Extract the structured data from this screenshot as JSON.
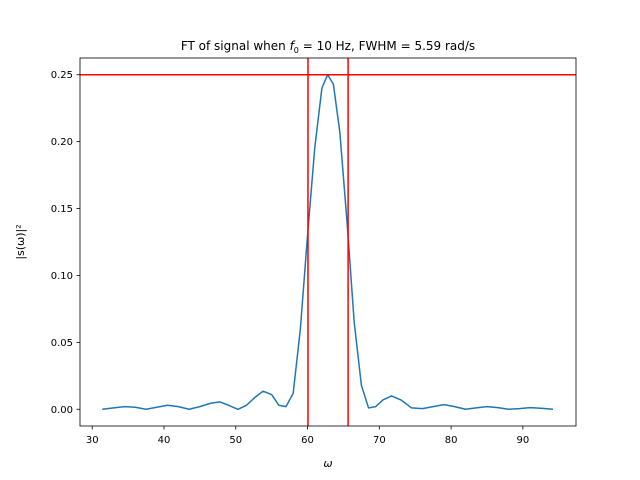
{
  "chart_data": {
    "type": "line",
    "title": "FT of signal when f₀ = 10 Hz, FWHM = 5.59 rad/s",
    "title_parts": {
      "prefix": "FT of signal when ",
      "f": "f",
      "sub": "0",
      "suffix": " = 10 Hz, FWHM = 5.59 rad/s"
    },
    "xlabel": "ω",
    "ylabel": "|s(ω)|²",
    "xlim": [
      28.3,
      97.4
    ],
    "ylim": [
      -0.0125,
      0.2625
    ],
    "xticks": [
      30,
      40,
      50,
      60,
      70,
      80,
      90
    ],
    "xtick_labels": [
      "30",
      "40",
      "50",
      "60",
      "70",
      "80",
      "90"
    ],
    "yticks": [
      0.0,
      0.05,
      0.1,
      0.15,
      0.2,
      0.25
    ],
    "ytick_labels": [
      "0.00",
      "0.05",
      "0.10",
      "0.15",
      "0.20",
      "0.25"
    ],
    "grid": false,
    "series": [
      {
        "color": "#1f77b4",
        "x": [
          31.4,
          33.0,
          34.5,
          36.0,
          37.5,
          39.0,
          40.5,
          42.0,
          43.5,
          45.0,
          46.5,
          47.8,
          49.0,
          50.3,
          51.5,
          52.7,
          53.8,
          55.0,
          56.0,
          57.0,
          58.0,
          59.0,
          60.0,
          61.0,
          62.0,
          62.8,
          63.6,
          64.5,
          65.5,
          66.5,
          67.5,
          68.5,
          69.5,
          70.5,
          71.7,
          73.0,
          74.5,
          76.0,
          77.5,
          79.0,
          80.5,
          82.0,
          83.5,
          85.0,
          86.5,
          88.0,
          89.5,
          91.0,
          92.5,
          94.2
        ],
        "y": [
          0.0,
          0.001,
          0.002,
          0.0015,
          0.0,
          0.0015,
          0.003,
          0.002,
          0.0,
          0.002,
          0.0045,
          0.0055,
          0.003,
          0.0,
          0.003,
          0.009,
          0.0135,
          0.011,
          0.003,
          0.002,
          0.012,
          0.06,
          0.13,
          0.195,
          0.24,
          0.25,
          0.243,
          0.207,
          0.14,
          0.065,
          0.018,
          0.001,
          0.002,
          0.007,
          0.01,
          0.007,
          0.001,
          0.0005,
          0.002,
          0.0035,
          0.002,
          0.0,
          0.001,
          0.002,
          0.0012,
          0.0,
          0.0005,
          0.0012,
          0.0008,
          0.0
        ]
      }
    ],
    "reference_lines": {
      "color": "#ff0000",
      "horizontal": [
        0.25
      ],
      "vertical": [
        60.06,
        65.65
      ]
    }
  }
}
